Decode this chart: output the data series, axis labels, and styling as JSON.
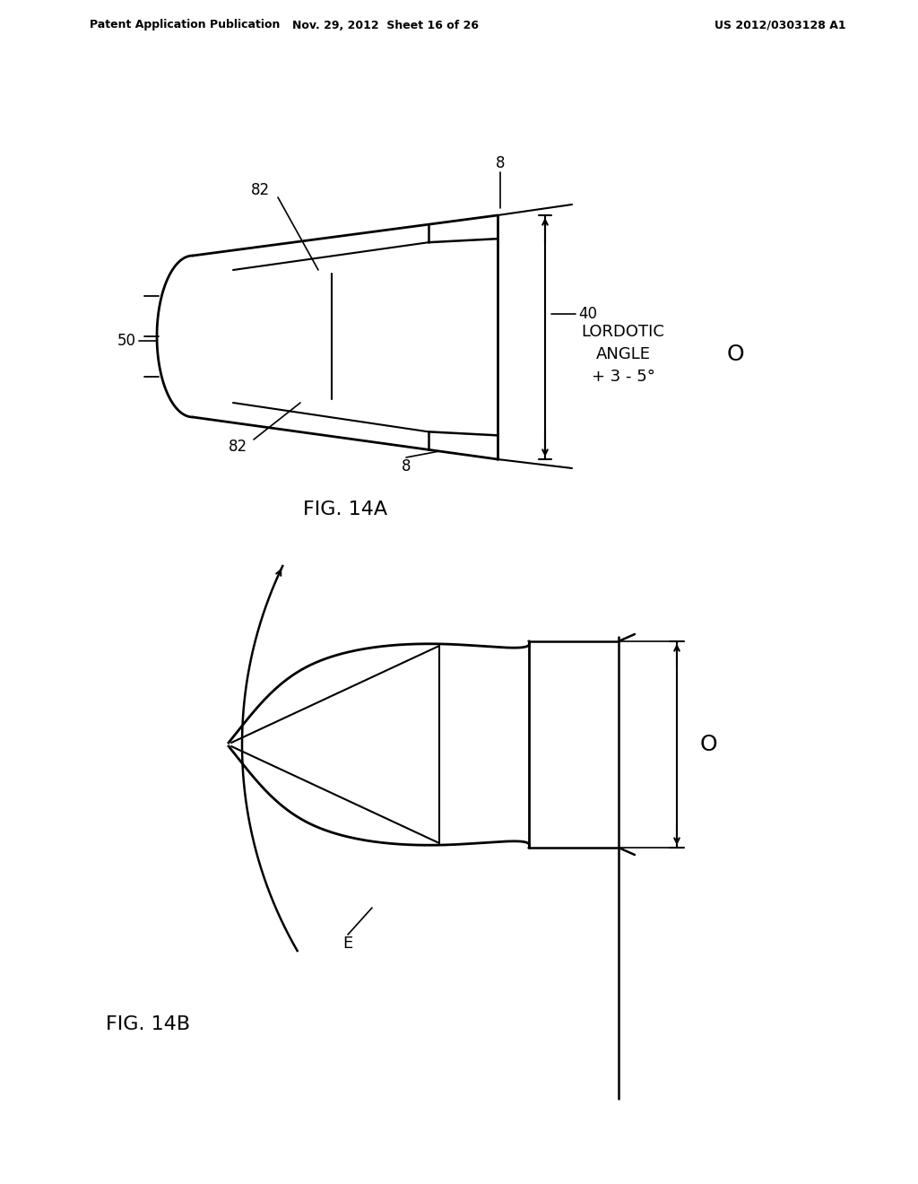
{
  "bg_color": "#ffffff",
  "line_color": "#000000",
  "header_left": "Patent Application Publication",
  "header_mid": "Nov. 29, 2012  Sheet 16 of 26",
  "header_right": "US 2012/0303128 A1",
  "fig14a_label": "FIG. 14A",
  "fig14b_label": "FIG. 14B"
}
